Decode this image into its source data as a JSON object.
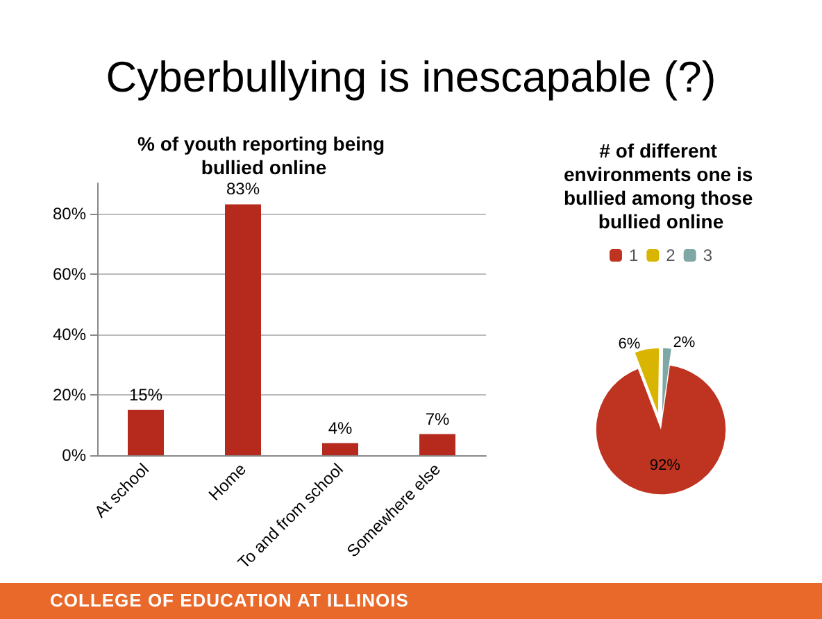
{
  "chart_data": [
    {
      "type": "other",
      "title": "Cyberbullying is inescapable (?)",
      "annotations": [
        "COLLEGE OF EDUCATION AT ILLINOIS"
      ]
    },
    {
      "type": "bar",
      "title": "% of youth reporting being bullied online",
      "categories": [
        "At school",
        "Home",
        "To and from school",
        "Somewhere else"
      ],
      "values": [
        15,
        83,
        4,
        7
      ],
      "value_labels": [
        "15%",
        "83%",
        "4%",
        "7%"
      ],
      "color": "#b52a1c",
      "ylim": [
        0,
        90
      ],
      "yticks": [
        {
          "value": 0,
          "label": "0%"
        },
        {
          "value": 20,
          "label": "20%"
        },
        {
          "value": 40,
          "label": "40%"
        },
        {
          "value": 60,
          "label": "60%"
        },
        {
          "value": 80,
          "label": "80%"
        }
      ],
      "grid": "y",
      "legend": false
    },
    {
      "type": "pie",
      "title": "# of different environments one is bullied among those bullied online",
      "categories": [
        "1",
        "2",
        "3"
      ],
      "values": [
        92,
        6,
        2
      ],
      "value_labels": [
        "92%",
        "6%",
        "2%"
      ],
      "colors": [
        "#bf3420",
        "#d9b400",
        "#7ea7a6"
      ],
      "legend": "top"
    }
  ]
}
